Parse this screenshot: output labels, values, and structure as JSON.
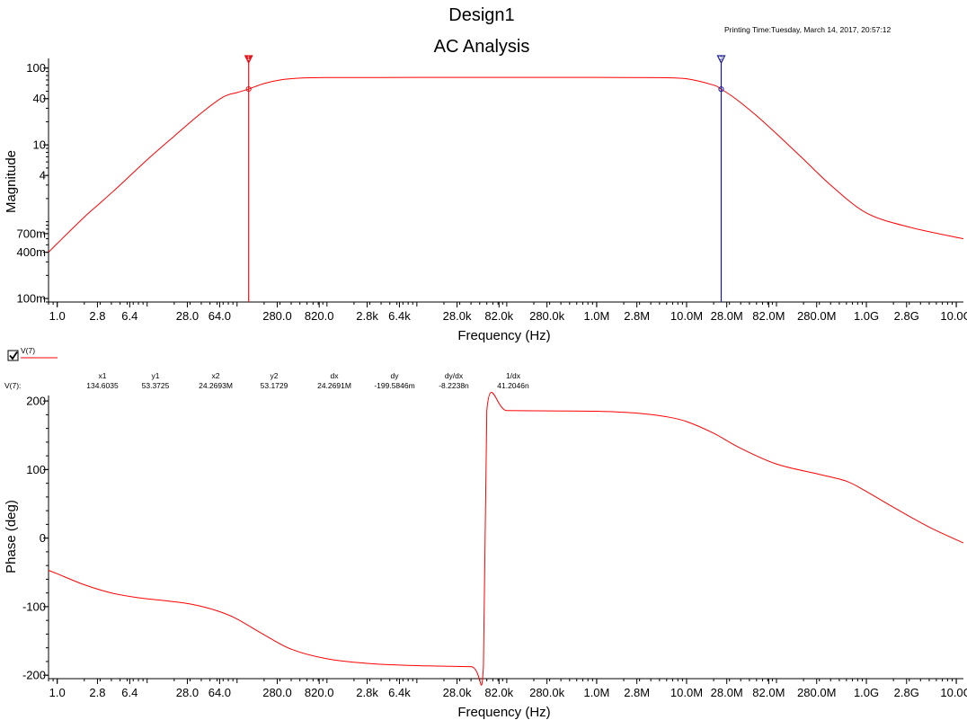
{
  "design_title": "Design1",
  "analysis_title": "AC Analysis",
  "printing_time": "Printing Time:Tuesday, March 14, 2017, 20:57:12",
  "legend": {
    "checked": true,
    "label": "V(7)",
    "color": "#ff0000"
  },
  "cursor_table": {
    "row_label": "V(7):",
    "headers": [
      "x1",
      "y1",
      "x2",
      "y2",
      "dx",
      "dy",
      "dy/dx",
      "1/dx"
    ],
    "values": [
      "134.6035",
      "53.3725",
      "24.2693M",
      "53.1729",
      "24.2691M",
      "-199.5846m",
      "-8.2238n",
      "41.2046n"
    ]
  },
  "chart_data": [
    {
      "type": "line",
      "title": "AC Analysis",
      "xlabel": "Frequency (Hz)",
      "ylabel": "Magnitude",
      "xscale": "log",
      "yscale": "log",
      "xlim": [
        0.8,
        12000000000
      ],
      "ylim": [
        0.09,
        130
      ],
      "xtick_values": [
        1,
        2.8,
        6.4,
        28,
        64,
        280,
        820,
        2800,
        6400,
        28000,
        82000,
        280000,
        1000000,
        2800000,
        10000000,
        28000000,
        82000000,
        280000000,
        1000000000,
        2800000000,
        10000000000
      ],
      "xtick_labels": [
        "1.0",
        "2.8",
        "6.4",
        "28.0",
        "64.0",
        "280.0",
        "820.0",
        "2.8k",
        "6.4k",
        "28.0k",
        "82.0k",
        "280.0k",
        "1.0M",
        "2.8M",
        "10.0M",
        "28.0M",
        "82.0M",
        "280.0M",
        "1.0G",
        "2.8G",
        "10.0G"
      ],
      "ytick_values": [
        100,
        40,
        10,
        4,
        0.7,
        0.4,
        0.1
      ],
      "ytick_labels": [
        "100",
        "40",
        "10",
        "4",
        "700m",
        "400m",
        "100m"
      ],
      "series": [
        {
          "name": "V(7)",
          "color": "#ff0000",
          "x": [
            0.8,
            1,
            2,
            3,
            5,
            10,
            20,
            40,
            70,
            100,
            134.6,
            200,
            300,
            500,
            1000,
            10000,
            100000,
            1000000,
            5000000,
            10000000,
            20000000,
            24269300,
            35000000,
            60000000,
            100000000,
            200000000,
            400000000,
            1000000000,
            3000000000,
            12000000000
          ],
          "y": [
            0.4,
            0.52,
            1.15,
            1.75,
            3.0,
            6.4,
            13,
            26,
            42,
            48,
            53.37,
            63,
            70,
            74,
            75.2,
            75.5,
            75.5,
            75.5,
            75.1,
            72.5,
            60,
            53.17,
            40,
            24,
            14,
            6.5,
            3.0,
            1.3,
            0.85,
            0.6
          ]
        }
      ],
      "cursors": [
        {
          "name": "1",
          "x": 134.6035,
          "y": 53.3725,
          "color": "#e8141a"
        },
        {
          "name": "2",
          "x": 24269300,
          "y": 53.1729,
          "color": "#1a1aa0"
        }
      ]
    },
    {
      "type": "line",
      "xlabel": "Frequency (Hz)",
      "ylabel": "Phase (deg)",
      "xscale": "log",
      "yscale": "linear",
      "xlim": [
        0.8,
        12000000000
      ],
      "ylim": [
        -205,
        208
      ],
      "xtick_values": [
        1,
        2.8,
        6.4,
        28,
        64,
        280,
        820,
        2800,
        6400,
        28000,
        82000,
        280000,
        1000000,
        2800000,
        10000000,
        28000000,
        82000000,
        280000000,
        1000000000,
        2800000000,
        10000000000
      ],
      "xtick_labels": [
        "1.0",
        "2.8",
        "6.4",
        "28.0",
        "64.0",
        "280.0",
        "820.0",
        "2.8k",
        "6.4k",
        "28.0k",
        "82.0k",
        "280.0k",
        "1.0M",
        "2.8M",
        "10.0M",
        "28.0M",
        "82.0M",
        "280.0M",
        "1.0G",
        "2.8G",
        "10.0G"
      ],
      "ytick_values": [
        200,
        100,
        0,
        -100,
        -200
      ],
      "ytick_labels": [
        "200",
        "100",
        "0",
        "-100",
        "-200"
      ],
      "series": [
        {
          "name": "V(7)",
          "color": "#ff0000",
          "x": [
            0.8,
            1,
            2,
            4,
            8,
            15,
            30,
            60,
            100,
            200,
            400,
            1000,
            3000,
            10000,
            40000,
            55000,
            60000,
            100000,
            300000,
            1000000,
            3000000,
            6000000,
            10000000,
            20000000,
            40000000,
            100000000,
            300000000,
            600000000,
            1000000000,
            2000000000,
            5000000000,
            12000000000
          ],
          "y": [
            -47,
            -52,
            -68,
            -80,
            -87,
            -91,
            -96,
            -106,
            -118,
            -141,
            -162,
            -176,
            -183,
            -186,
            -187.5,
            -188,
            186,
            186,
            185.5,
            185,
            182,
            177,
            170,
            153,
            131,
            108,
            93,
            83,
            68,
            45,
            16,
            -7
          ]
        }
      ]
    }
  ]
}
